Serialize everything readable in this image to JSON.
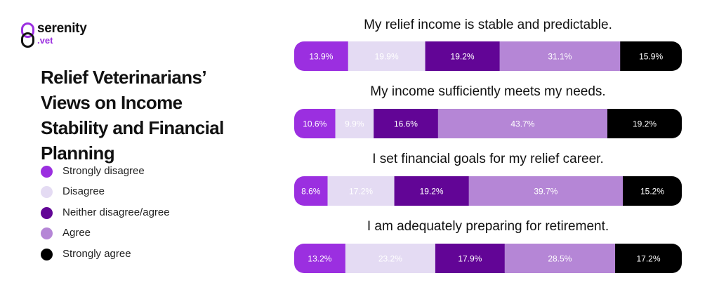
{
  "brand": {
    "name": "serenity",
    "tld": ".vet"
  },
  "colors": {
    "brand": "#9b2fe0",
    "strongly_disagree": "#9b2fe0",
    "disagree": "#e4dbf3",
    "neither": "#620596",
    "agree": "#b586d6",
    "strongly_agree": "#000000"
  },
  "legend": [
    {
      "label": "Strongly disagree",
      "color": "#9b2fe0"
    },
    {
      "label": "Disagree",
      "color": "#e4dbf3"
    },
    {
      "label": "Neither disagree/agree",
      "color": "#620596"
    },
    {
      "label": "Agree",
      "color": "#b586d6"
    },
    {
      "label": "Strongly agree",
      "color": "#000000"
    }
  ],
  "chart_data": {
    "type": "bar",
    "stacked": true,
    "orientation": "horizontal",
    "title": "Relief Veterinarians’ Views on Income Stability and Financial Planning",
    "legend_position": "left",
    "categories": [
      "My relief income is stable and predictable.",
      "My income sufficiently meets my needs.",
      "I set financial goals for my relief career.",
      "I am adequately preparing for retirement."
    ],
    "series": [
      {
        "name": "Strongly disagree",
        "color": "#9b2fe0",
        "label_color": "#ffffff",
        "values": [
          13.9,
          10.6,
          8.6,
          13.2
        ]
      },
      {
        "name": "Disagree",
        "color": "#e4dbf3",
        "label_color": "#ffffff",
        "values": [
          19.9,
          9.9,
          17.2,
          23.2
        ]
      },
      {
        "name": "Neither disagree/agree",
        "color": "#620596",
        "label_color": "#ffffff",
        "values": [
          19.2,
          16.6,
          19.2,
          17.9
        ]
      },
      {
        "name": "Agree",
        "color": "#b586d6",
        "label_color": "#ffffff",
        "values": [
          31.1,
          43.7,
          39.7,
          28.5
        ]
      },
      {
        "name": "Strongly agree",
        "color": "#000000",
        "label_color": "#ffffff",
        "values": [
          15.9,
          19.2,
          15.2,
          17.2
        ]
      }
    ],
    "value_labels": [
      [
        "13.9%",
        "19.9%",
        "19.2%",
        "31.1%",
        "15.9%"
      ],
      [
        "10.6%",
        "9.9%",
        "16.6%",
        "43.7%",
        "19.2%"
      ],
      [
        "8.6%",
        "17.2%",
        "19.2%",
        "39.7%",
        "15.2%"
      ],
      [
        "13.2%",
        "23.2%",
        "17.9%",
        "28.5%",
        "17.2%"
      ]
    ]
  }
}
